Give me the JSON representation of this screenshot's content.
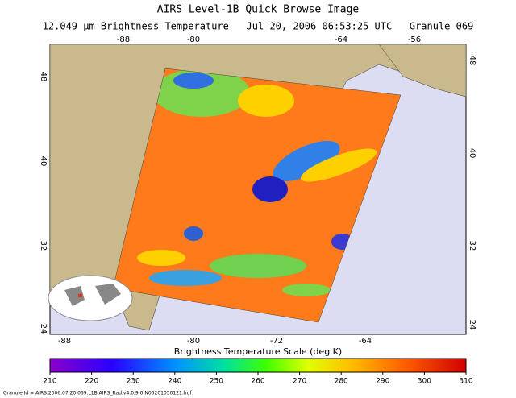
{
  "header": {
    "title": "AIRS Level-1B Quick Browse Image",
    "subtitle": "12.049 μm Brightness Temperature   Jul 20, 2006 06:53:25 UTC   Granule 069"
  },
  "map": {
    "top_lon_labels": [
      "-88",
      "-80",
      "-64",
      "-56"
    ],
    "bottom_lon_labels": [
      "-88",
      "-80",
      "-72",
      "-64"
    ],
    "left_lat_labels": [
      "48",
      "40",
      "32",
      "24"
    ],
    "right_lat_labels": [
      "48",
      "40",
      "32",
      "24"
    ]
  },
  "colorbar": {
    "label": "Brightness Temperature Scale (deg K)",
    "range": [
      210,
      310
    ],
    "ticks": [
      210,
      220,
      230,
      240,
      250,
      260,
      270,
      280,
      290,
      300,
      310
    ]
  },
  "footer": {
    "granule_id": "Granule Id = AIRS.2006.07.20.069.L1B.AIRS_Rad.v4.0.9.0.N06201050121.hdf"
  }
}
